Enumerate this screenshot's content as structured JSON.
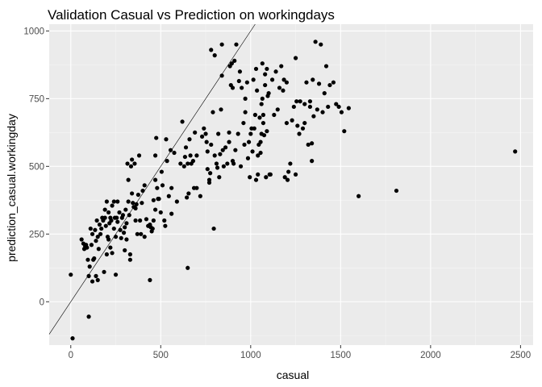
{
  "chart_data": {
    "type": "scatter",
    "title": "Validation Casual vs Prediction on workingdays",
    "xlabel": "casual",
    "ylabel": "prediction_casual.workingday",
    "xlim": [
      -120,
      2570
    ],
    "ylim": [
      -160,
      1025
    ],
    "x_ticks": [
      0,
      500,
      1000,
      1500,
      2000,
      2500
    ],
    "y_ticks": [
      0,
      250,
      500,
      750,
      1000
    ],
    "x_tick_labels": [
      "0",
      "500",
      "1000",
      "1500",
      "2000",
      "2500"
    ],
    "y_tick_labels": [
      "0",
      "250",
      "500",
      "750",
      "1000"
    ],
    "grid": true,
    "legend": "none",
    "reference_line": {
      "slope": 1,
      "intercept": 0
    },
    "colors": {
      "panel": "#ebebeb",
      "grid_major": "#ffffff",
      "grid_minor": "#f5f5f5",
      "point": "#000000",
      "text": "#4d4d4d"
    },
    "points": [
      [
        0,
        100
      ],
      [
        10,
        -135
      ],
      [
        60,
        230
      ],
      [
        70,
        215
      ],
      [
        75,
        195
      ],
      [
        80,
        205
      ],
      [
        85,
        210
      ],
      [
        90,
        200
      ],
      [
        95,
        155
      ],
      [
        100,
        95
      ],
      [
        100,
        -55
      ],
      [
        105,
        130
      ],
      [
        110,
        270
      ],
      [
        115,
        210
      ],
      [
        120,
        75
      ],
      [
        120,
        250
      ],
      [
        125,
        155
      ],
      [
        130,
        160
      ],
      [
        135,
        265
      ],
      [
        140,
        225
      ],
      [
        140,
        95
      ],
      [
        145,
        300
      ],
      [
        150,
        80
      ],
      [
        150,
        240
      ],
      [
        155,
        195
      ],
      [
        160,
        285
      ],
      [
        165,
        250
      ],
      [
        170,
        270
      ],
      [
        175,
        310
      ],
      [
        180,
        300
      ],
      [
        185,
        110
      ],
      [
        190,
        340
      ],
      [
        190,
        310
      ],
      [
        195,
        280
      ],
      [
        200,
        370
      ],
      [
        200,
        175
      ],
      [
        205,
        240
      ],
      [
        210,
        330
      ],
      [
        210,
        230
      ],
      [
        215,
        290
      ],
      [
        220,
        310
      ],
      [
        220,
        200
      ],
      [
        225,
        300
      ],
      [
        230,
        355
      ],
      [
        230,
        180
      ],
      [
        240,
        270
      ],
      [
        240,
        370
      ],
      [
        245,
        310
      ],
      [
        250,
        240
      ],
      [
        250,
        100
      ],
      [
        255,
        310
      ],
      [
        260,
        295
      ],
      [
        260,
        370
      ],
      [
        270,
        330
      ],
      [
        275,
        265
      ],
      [
        280,
        235
      ],
      [
        285,
        310
      ],
      [
        290,
        320
      ],
      [
        295,
        255
      ],
      [
        300,
        275
      ],
      [
        300,
        190
      ],
      [
        305,
        340
      ],
      [
        310,
        290
      ],
      [
        310,
        230
      ],
      [
        315,
        510
      ],
      [
        320,
        450
      ],
      [
        320,
        370
      ],
      [
        325,
        320
      ],
      [
        330,
        175
      ],
      [
        330,
        155
      ],
      [
        335,
        500
      ],
      [
        340,
        525
      ],
      [
        340,
        400
      ],
      [
        345,
        365
      ],
      [
        350,
        350
      ],
      [
        355,
        510
      ],
      [
        360,
        300
      ],
      [
        360,
        345
      ],
      [
        365,
        360
      ],
      [
        370,
        250
      ],
      [
        375,
        395
      ],
      [
        380,
        540
      ],
      [
        385,
        300
      ],
      [
        390,
        250
      ],
      [
        395,
        365
      ],
      [
        400,
        410
      ],
      [
        410,
        430
      ],
      [
        410,
        240
      ],
      [
        420,
        305
      ],
      [
        430,
        280
      ],
      [
        440,
        285
      ],
      [
        440,
        80
      ],
      [
        445,
        275
      ],
      [
        450,
        260
      ],
      [
        455,
        270
      ],
      [
        460,
        300
      ],
      [
        460,
        375
      ],
      [
        470,
        450
      ],
      [
        470,
        340
      ],
      [
        470,
        540
      ],
      [
        475,
        605
      ],
      [
        480,
        420
      ],
      [
        485,
        380
      ],
      [
        490,
        380
      ],
      [
        500,
        330
      ],
      [
        505,
        480
      ],
      [
        510,
        430
      ],
      [
        520,
        300
      ],
      [
        525,
        280
      ],
      [
        530,
        600
      ],
      [
        535,
        520
      ],
      [
        545,
        390
      ],
      [
        555,
        560
      ],
      [
        560,
        420
      ],
      [
        560,
        325
      ],
      [
        575,
        550
      ],
      [
        590,
        370
      ],
      [
        610,
        510
      ],
      [
        620,
        665
      ],
      [
        630,
        500
      ],
      [
        635,
        535
      ],
      [
        640,
        570
      ],
      [
        645,
        385
      ],
      [
        650,
        510
      ],
      [
        650,
        125
      ],
      [
        655,
        400
      ],
      [
        660,
        600
      ],
      [
        665,
        540
      ],
      [
        670,
        510
      ],
      [
        680,
        520
      ],
      [
        685,
        420
      ],
      [
        690,
        625
      ],
      [
        700,
        540
      ],
      [
        700,
        420
      ],
      [
        720,
        390
      ],
      [
        730,
        610
      ],
      [
        740,
        640
      ],
      [
        750,
        620
      ],
      [
        755,
        590
      ],
      [
        760,
        490
      ],
      [
        760,
        555
      ],
      [
        770,
        440
      ],
      [
        770,
        450
      ],
      [
        775,
        475
      ],
      [
        780,
        580
      ],
      [
        780,
        930
      ],
      [
        790,
        700
      ],
      [
        795,
        270
      ],
      [
        800,
        910
      ],
      [
        800,
        540
      ],
      [
        810,
        510
      ],
      [
        815,
        495
      ],
      [
        820,
        620
      ],
      [
        825,
        460
      ],
      [
        830,
        545
      ],
      [
        835,
        710
      ],
      [
        840,
        835
      ],
      [
        840,
        950
      ],
      [
        845,
        560
      ],
      [
        850,
        500
      ],
      [
        860,
        570
      ],
      [
        870,
        510
      ],
      [
        880,
        590
      ],
      [
        880,
        625
      ],
      [
        885,
        870
      ],
      [
        890,
        800
      ],
      [
        895,
        880
      ],
      [
        900,
        790
      ],
      [
        900,
        520
      ],
      [
        905,
        510
      ],
      [
        910,
        890
      ],
      [
        915,
        560
      ],
      [
        920,
        950
      ],
      [
        930,
        620
      ],
      [
        935,
        815
      ],
      [
        940,
        850
      ],
      [
        945,
        500
      ],
      [
        950,
        790
      ],
      [
        960,
        660
      ],
      [
        965,
        580
      ],
      [
        970,
        700
      ],
      [
        970,
        750
      ],
      [
        980,
        810
      ],
      [
        985,
        530
      ],
      [
        990,
        590
      ],
      [
        995,
        460
      ],
      [
        1000,
        620
      ],
      [
        1005,
        640
      ],
      [
        1010,
        555
      ],
      [
        1015,
        820
      ],
      [
        1020,
        640
      ],
      [
        1025,
        690
      ],
      [
        1030,
        450
      ],
      [
        1030,
        860
      ],
      [
        1035,
        780
      ],
      [
        1040,
        540
      ],
      [
        1040,
        470
      ],
      [
        1045,
        580
      ],
      [
        1050,
        680
      ],
      [
        1055,
        550
      ],
      [
        1055,
        590
      ],
      [
        1060,
        620
      ],
      [
        1060,
        730
      ],
      [
        1065,
        750
      ],
      [
        1065,
        880
      ],
      [
        1070,
        690
      ],
      [
        1070,
        660
      ],
      [
        1075,
        615
      ],
      [
        1080,
        840
      ],
      [
        1080,
        800
      ],
      [
        1085,
        460
      ],
      [
        1090,
        630
      ],
      [
        1090,
        860
      ],
      [
        1095,
        760
      ],
      [
        1100,
        770
      ],
      [
        1105,
        470
      ],
      [
        1110,
        470
      ],
      [
        1120,
        820
      ],
      [
        1130,
        690
      ],
      [
        1140,
        850
      ],
      [
        1150,
        710
      ],
      [
        1160,
        790
      ],
      [
        1170,
        870
      ],
      [
        1180,
        780
      ],
      [
        1185,
        820
      ],
      [
        1190,
        460
      ],
      [
        1200,
        660
      ],
      [
        1200,
        810
      ],
      [
        1205,
        450
      ],
      [
        1210,
        480
      ],
      [
        1220,
        510
      ],
      [
        1230,
        670
      ],
      [
        1240,
        720
      ],
      [
        1250,
        470
      ],
      [
        1250,
        900
      ],
      [
        1255,
        740
      ],
      [
        1260,
        650
      ],
      [
        1270,
        620
      ],
      [
        1275,
        740
      ],
      [
        1290,
        640
      ],
      [
        1300,
        730
      ],
      [
        1300,
        660
      ],
      [
        1310,
        810
      ],
      [
        1320,
        580
      ],
      [
        1330,
        740
      ],
      [
        1330,
        720
      ],
      [
        1340,
        585
      ],
      [
        1340,
        520
      ],
      [
        1345,
        820
      ],
      [
        1350,
        685
      ],
      [
        1360,
        960
      ],
      [
        1370,
        710
      ],
      [
        1380,
        805
      ],
      [
        1390,
        950
      ],
      [
        1400,
        700
      ],
      [
        1410,
        770
      ],
      [
        1420,
        870
      ],
      [
        1430,
        720
      ],
      [
        1440,
        800
      ],
      [
        1460,
        810
      ],
      [
        1475,
        730
      ],
      [
        1490,
        720
      ],
      [
        1505,
        700
      ],
      [
        1520,
        630
      ],
      [
        1545,
        715
      ],
      [
        1600,
        390
      ],
      [
        1810,
        410
      ],
      [
        2470,
        555
      ]
    ]
  }
}
